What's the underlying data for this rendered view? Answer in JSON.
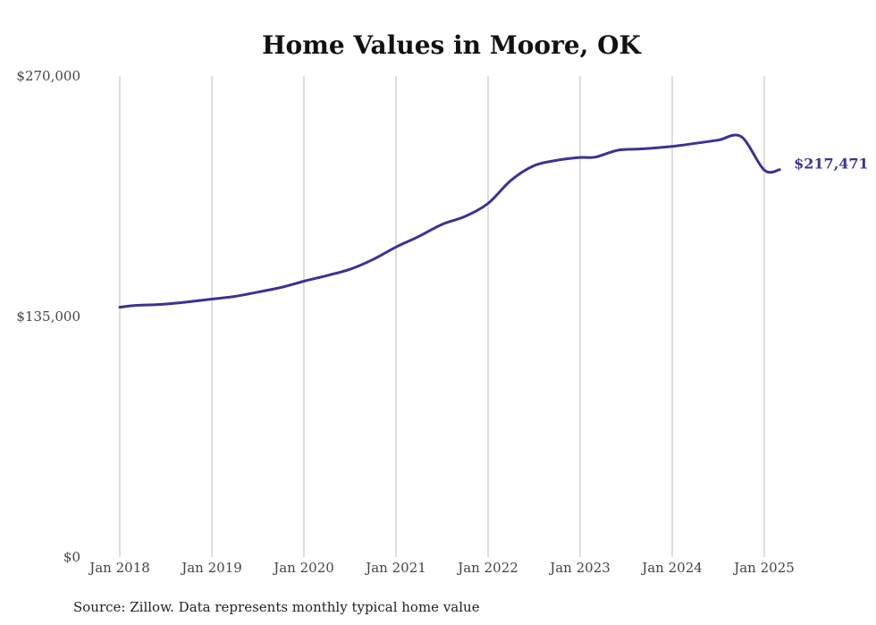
{
  "chart_data": {
    "type": "line",
    "title": "Home Values in Moore, OK",
    "xlabel": "",
    "ylabel": "",
    "x_ticks": [
      "Jan 2018",
      "Jan 2019",
      "Jan 2020",
      "Jan 2021",
      "Jan 2022",
      "Jan 2023",
      "Jan 2024",
      "Jan 2025"
    ],
    "y_ticks": [
      "$0",
      "$135,000",
      "$270,000"
    ],
    "ylim": [
      0,
      270000
    ],
    "xlim": [
      "2018-01",
      "2025-03"
    ],
    "grid": "vertical",
    "legend": "none",
    "end_label": "$217,471",
    "color": "#3a3393",
    "series": [
      {
        "x": [
          "2018-01",
          "2018-03",
          "2018-06",
          "2018-09",
          "2019-01",
          "2019-04",
          "2019-07",
          "2019-10",
          "2020-01",
          "2020-04",
          "2020-07",
          "2020-10",
          "2021-01",
          "2021-04",
          "2021-07",
          "2021-10",
          "2022-01",
          "2022-04",
          "2022-07",
          "2022-10",
          "2023-01",
          "2023-03",
          "2023-06",
          "2023-09",
          "2024-01",
          "2024-04",
          "2024-07",
          "2024-10",
          "2025-01",
          "2025-03"
        ],
        "values": [
          140200,
          141200,
          141700,
          142800,
          144800,
          146300,
          148700,
          151300,
          154800,
          158000,
          161500,
          167000,
          174000,
          180000,
          186700,
          191200,
          198500,
          211500,
          219700,
          222700,
          224300,
          224500,
          228400,
          229100,
          230500,
          232200,
          234000,
          235900,
          217200,
          217471
        ]
      }
    ],
    "source": "Source: Zillow. Data represents monthly typical home value"
  }
}
